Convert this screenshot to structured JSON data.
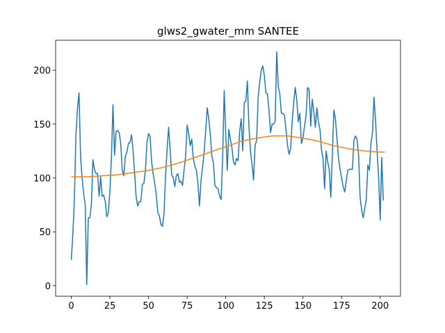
{
  "chart_data": {
    "type": "line",
    "title": "glws2_gwater_mm SANTEE",
    "series": [
      {
        "color": "#1f77b4",
        "x": [
          0,
          1,
          2,
          3,
          4,
          5,
          6,
          7,
          8,
          9,
          10,
          11,
          12,
          13,
          14,
          15,
          16,
          17,
          18,
          19,
          20,
          21,
          22,
          23,
          24,
          25,
          26,
          27,
          28,
          29,
          30,
          31,
          32,
          33,
          34,
          35,
          36,
          37,
          38,
          39,
          40,
          41,
          42,
          43,
          44,
          45,
          46,
          47,
          48,
          49,
          50,
          51,
          52,
          53,
          54,
          55,
          56,
          57,
          58,
          59,
          60,
          61,
          62,
          63,
          64,
          65,
          66,
          67,
          68,
          69,
          70,
          71,
          72,
          73,
          74,
          75,
          76,
          77,
          78,
          79,
          80,
          81,
          82,
          83,
          84,
          85,
          86,
          87,
          88,
          89,
          90,
          91,
          92,
          93,
          94,
          95,
          96,
          97,
          98,
          99,
          100,
          101,
          102,
          103,
          104,
          105,
          106,
          107,
          108,
          109,
          110,
          111,
          112,
          113,
          114,
          115,
          116,
          117,
          118,
          119,
          120,
          121,
          122,
          123,
          124,
          125,
          126,
          127,
          128,
          129,
          130,
          131,
          132,
          133,
          134,
          135,
          136,
          137,
          138,
          139,
          140,
          141,
          142,
          143,
          144,
          145,
          146,
          147,
          148,
          149,
          150,
          151,
          152,
          153,
          154,
          155,
          156,
          157,
          158,
          159,
          160,
          161,
          162,
          163,
          164,
          165,
          166,
          167,
          168,
          169,
          170,
          171,
          172,
          173,
          174,
          175,
          176,
          177,
          178,
          179,
          180,
          181,
          182,
          183,
          184,
          185,
          186,
          187,
          188,
          189,
          190,
          191,
          192,
          193,
          194,
          195,
          196,
          197,
          198,
          199,
          200,
          201,
          202
        ],
        "values": [
          24,
          48,
          80,
          140,
          165,
          179,
          120,
          100,
          85,
          75,
          1,
          63,
          63,
          75,
          117,
          108,
          104,
          104,
          83,
          101,
          83,
          84,
          78,
          64,
          68,
          88,
          120,
          168,
          121,
          143,
          144,
          142,
          132,
          107,
          102,
          120,
          124,
          132,
          133,
          140,
          125,
          104,
          82,
          74,
          78,
          78,
          94,
          95,
          107,
          133,
          141,
          139,
          115,
          104,
          95,
          85,
          68,
          65,
          57,
          55,
          66,
          101,
          126,
          147,
          126,
          103,
          100,
          92,
          102,
          104,
          96,
          97,
          93,
          107,
          120,
          149,
          141,
          130,
          136,
          118,
          111,
          107,
          95,
          74,
          98,
          110,
          124,
          143,
          165,
          155,
          140,
          120,
          114,
          93,
          91,
          90,
          83,
          80,
          120,
          181,
          140,
          107,
          145,
          136,
          128,
          115,
          112,
          118,
          116,
          143,
          155,
          125,
          170,
          171,
          190,
          148,
          125,
          113,
          98,
          130,
          135,
          175,
          189,
          200,
          204,
          195,
          179,
          178,
          163,
          142,
          150,
          150,
          153,
          217,
          185,
          178,
          160,
          160,
          158,
          145,
          130,
          122,
          127,
          152,
          170,
          184,
          172,
          152,
          160,
          132,
          137,
          148,
          158,
          184,
          182,
          148,
          173,
          162,
          147,
          165,
          152,
          145,
          126,
          118,
          90,
          125,
          115,
          108,
          82,
          120,
          163,
          155,
          137,
          118,
          108,
          100,
          92,
          87,
          97,
          107,
          108,
          108,
          108,
          135,
          139,
          136,
          121,
          82,
          70,
          63,
          72,
          80,
          112,
          107,
          132,
          142,
          175,
          153,
          125,
          100,
          61,
          119,
          79
        ]
      },
      {
        "color": "#ff7f0e",
        "x": [
          0,
          10,
          20,
          30,
          40,
          50,
          60,
          70,
          80,
          90,
          100,
          110,
          120,
          130,
          140,
          150,
          160,
          170,
          180,
          190,
          200,
          203
        ],
        "values": [
          101,
          101,
          102,
          103,
          105,
          107,
          110,
          114,
          119,
          124,
          129,
          134,
          137,
          139,
          139,
          137,
          134,
          130,
          127,
          125,
          124,
          124
        ]
      }
    ],
    "xlim": [
      -10.15,
      213.15
    ],
    "xticks": [
      0,
      25,
      50,
      75,
      100,
      125,
      150,
      175,
      200
    ],
    "ylim": [
      -9.8,
      227.8
    ],
    "yticks": [
      0,
      50,
      100,
      150,
      200
    ],
    "grid": false
  }
}
